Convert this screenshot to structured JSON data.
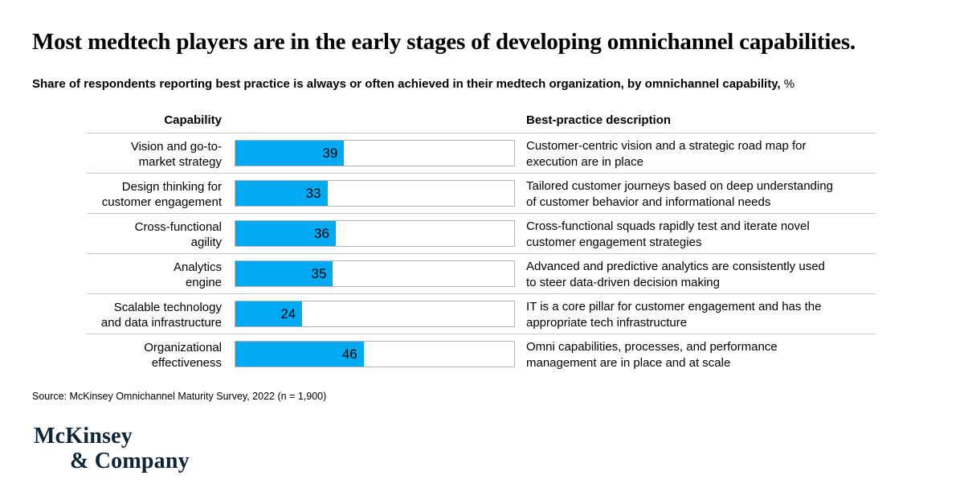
{
  "page": {
    "title": "Most medtech players are in the early stages of developing omnichannel capabilities.",
    "subtitle_main": "Share of respondents reporting best practice is always or often achieved in their medtech organization, by omnichannel capability,",
    "subtitle_unit": "%"
  },
  "table": {
    "capability_header": "Capability",
    "description_header": "Best-practice description",
    "rows": [
      {
        "label_lines": [
          "Vision and go-to-",
          "market strategy"
        ],
        "value": 39,
        "desc_lines": [
          "Customer-centric vision and a strategic road map for",
          "execution are in place"
        ]
      },
      {
        "label_lines": [
          "Design thinking for",
          "customer engagement"
        ],
        "value": 33,
        "desc_lines": [
          "Tailored customer journeys based on deep understanding",
          "of customer behavior and informational needs"
        ]
      },
      {
        "label_lines": [
          "Cross-functional",
          "agility"
        ],
        "value": 36,
        "desc_lines": [
          "Cross-functional squads rapidly test and iterate novel",
          "customer engagement strategies"
        ]
      },
      {
        "label_lines": [
          "Analytics",
          "engine"
        ],
        "value": 35,
        "desc_lines": [
          "Advanced and predictive analytics are consistently used",
          "to steer data-driven decision making"
        ]
      },
      {
        "label_lines": [
          "Scalable technology",
          "and data infrastructure"
        ],
        "value": 24,
        "desc_lines": [
          "IT is a core pillar for customer engagement and has the",
          "appropriate tech infrastructure"
        ]
      },
      {
        "label_lines": [
          "Organizational",
          "effectiveness"
        ],
        "value": 46,
        "desc_lines": [
          "Omni capabilities, processes, and performance",
          "management are in place and at scale"
        ]
      }
    ]
  },
  "source": "Source: McKinsey Omnichannel Maturity Survey, 2022 (n = 1,900)",
  "logo": {
    "line1": "McKinsey",
    "line2": "& Company"
  },
  "colors": {
    "bar_fill": "#00a9f4",
    "bar_track_border": "#b3b3b3",
    "row_separator": "#c9c9c9",
    "logo_navy": "#0b2536"
  },
  "chart_data": {
    "type": "bar",
    "orientation": "horizontal",
    "title": "Most medtech players are in the early stages of developing omnichannel capabilities.",
    "subtitle": "Share of respondents reporting best practice is always or often achieved in their medtech organization, by omnichannel capability, %",
    "categories": [
      "Vision and go-to-market strategy",
      "Design thinking for customer engagement",
      "Cross-functional agility",
      "Analytics engine",
      "Scalable technology and data infrastructure",
      "Organizational effectiveness"
    ],
    "values": [
      39,
      33,
      36,
      35,
      24,
      46
    ],
    "unit": "%",
    "xlim": [
      0,
      100
    ],
    "grid": false,
    "legend": false,
    "value_labels": "inside-bar-right",
    "descriptions": [
      "Customer-centric vision and a strategic road map for execution are in place",
      "Tailored customer journeys based on deep understanding of customer behavior and informational needs",
      "Cross-functional squads rapidly test and iterate novel customer engagement strategies",
      "Advanced and predictive analytics are consistently used to steer data-driven decision making",
      "IT is a core pillar for customer engagement and has the appropriate tech infrastructure",
      "Omni capabilities, processes, and performance management are in place and at scale"
    ]
  }
}
